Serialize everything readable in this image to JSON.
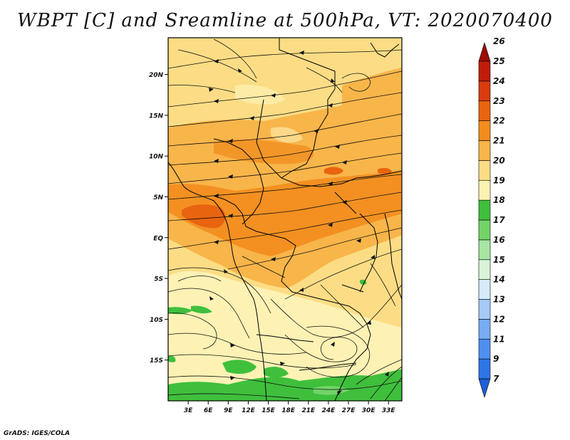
{
  "title": "WBPT [C] and Sreamline at 500hPa, VT: 2020070400",
  "credit": "GrADS: IGES/COLA",
  "map": {
    "variable": "Wet-bulb potential temperature",
    "units": "C",
    "level": "500hPa",
    "valid_time": "2020070400",
    "lat_ticks": [
      "20N",
      "15N",
      "10N",
      "5N",
      "EQ",
      "5S",
      "10S",
      "15S"
    ],
    "lon_ticks": [
      "3E",
      "6E",
      "9E",
      "12E",
      "15E",
      "18E",
      "21E",
      "24E",
      "27E",
      "30E",
      "33E"
    ],
    "extent": {
      "lon_min": 0,
      "lon_max": 35,
      "lat_min": -20,
      "lat_max": 24.5
    }
  },
  "legend": {
    "labels": [
      "7",
      "9",
      "11",
      "12",
      "13",
      "14",
      "15",
      "16",
      "17",
      "18",
      "19",
      "20",
      "21",
      "22",
      "23",
      "24",
      "25",
      "26"
    ],
    "colors": [
      "#1f5ed6",
      "#2e75e6",
      "#4f90ef",
      "#78acf4",
      "#a5caf8",
      "#d6ebfb",
      "#d9f4d7",
      "#a7e6a2",
      "#72d468",
      "#3fbf3c",
      "#fdf2b4",
      "#fcdd85",
      "#f8b54a",
      "#f28c1d",
      "#e8640f",
      "#d93b0e",
      "#bf1c0c",
      "#9e0b06"
    ]
  }
}
